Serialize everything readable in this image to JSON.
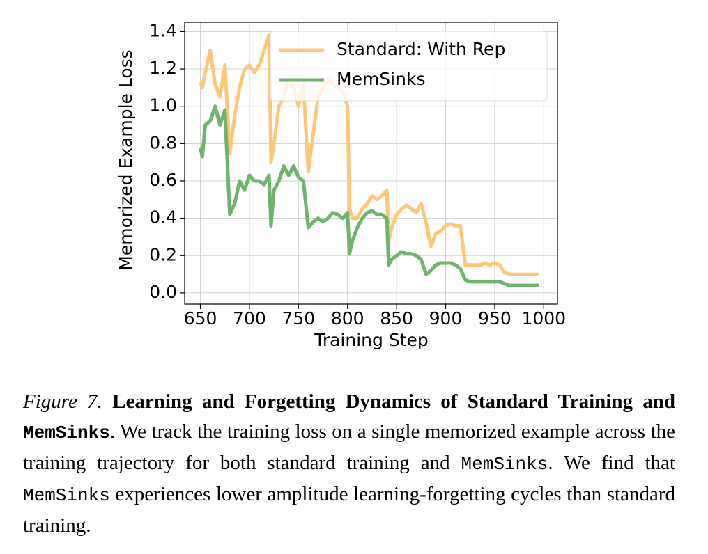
{
  "chart_data": {
    "type": "line",
    "x": [
      650,
      652,
      655,
      660,
      665,
      670,
      675,
      680,
      685,
      690,
      695,
      700,
      705,
      710,
      715,
      720,
      722,
      725,
      730,
      735,
      740,
      745,
      750,
      755,
      760,
      765,
      770,
      775,
      780,
      785,
      790,
      795,
      800,
      802,
      805,
      810,
      815,
      820,
      825,
      830,
      835,
      840,
      842,
      845,
      850,
      855,
      860,
      865,
      870,
      875,
      880,
      885,
      890,
      895,
      900,
      905,
      910,
      915,
      920,
      925,
      930,
      935,
      940,
      945,
      950,
      955,
      960,
      965,
      970,
      975,
      980,
      985,
      990,
      995
    ],
    "series": [
      {
        "name": "Standard: With Rep",
        "color": "#fdc777",
        "values": [
          1.13,
          1.1,
          1.18,
          1.3,
          1.12,
          1.05,
          1.22,
          0.75,
          0.95,
          1.1,
          1.2,
          1.22,
          1.18,
          1.22,
          1.3,
          1.38,
          0.7,
          0.8,
          1.0,
          1.05,
          1.15,
          1.1,
          1.0,
          1.12,
          0.65,
          0.85,
          1.05,
          1.1,
          1.15,
          1.12,
          1.1,
          1.08,
          1.0,
          0.45,
          0.4,
          0.4,
          0.45,
          0.48,
          0.52,
          0.5,
          0.52,
          0.55,
          0.28,
          0.35,
          0.42,
          0.45,
          0.47,
          0.45,
          0.43,
          0.48,
          0.38,
          0.25,
          0.32,
          0.33,
          0.36,
          0.37,
          0.36,
          0.36,
          0.15,
          0.15,
          0.15,
          0.15,
          0.16,
          0.15,
          0.16,
          0.15,
          0.11,
          0.1,
          0.1,
          0.1,
          0.1,
          0.1,
          0.1,
          0.1
        ]
      },
      {
        "name": "MemSinks",
        "color": "#6db46d",
        "values": [
          0.78,
          0.73,
          0.9,
          0.92,
          1.0,
          0.9,
          0.98,
          0.42,
          0.48,
          0.6,
          0.55,
          0.63,
          0.6,
          0.6,
          0.58,
          0.63,
          0.36,
          0.55,
          0.6,
          0.68,
          0.63,
          0.68,
          0.62,
          0.6,
          0.35,
          0.38,
          0.4,
          0.38,
          0.4,
          0.43,
          0.42,
          0.4,
          0.43,
          0.21,
          0.28,
          0.35,
          0.4,
          0.43,
          0.44,
          0.42,
          0.42,
          0.4,
          0.15,
          0.18,
          0.2,
          0.22,
          0.21,
          0.21,
          0.2,
          0.18,
          0.1,
          0.12,
          0.15,
          0.16,
          0.16,
          0.16,
          0.15,
          0.13,
          0.07,
          0.06,
          0.06,
          0.06,
          0.06,
          0.06,
          0.06,
          0.06,
          0.05,
          0.04,
          0.04,
          0.04,
          0.04,
          0.04,
          0.04,
          0.04
        ]
      }
    ],
    "xlabel": "Training Step",
    "ylabel": "Memorized Example Loss",
    "xlim": [
      634,
      1014
    ],
    "ylim": [
      -0.06,
      1.45
    ],
    "xticks": [
      650,
      700,
      750,
      800,
      850,
      900,
      950,
      1000
    ],
    "yticks": [
      {
        "value": 0,
        "label": "0.0"
      },
      0.2,
      0.4,
      0.6,
      0.8,
      {
        "value": 1,
        "label": "1.0"
      },
      1.2,
      1.4
    ],
    "grid": true,
    "legend": "upper right"
  },
  "caption": {
    "segments": [
      {
        "text": "Figure 7.",
        "style": "italic"
      },
      {
        "text": " Learning and Forgetting Dynamics of Standard Training and ",
        "style": "bold"
      },
      {
        "text": "MemSinks",
        "style": "bold-mono"
      },
      {
        "text": ". We track the training loss on a single memorized example across the training trajectory for both standard training and ",
        "style": "plain"
      },
      {
        "text": "MemSinks",
        "style": "mono"
      },
      {
        "text": ".  We find that ",
        "style": "plain"
      },
      {
        "text": "MemSinks",
        "style": "mono"
      },
      {
        "text": " experiences lower amplitude learning-forgetting cycles than standard training.",
        "style": "plain"
      }
    ]
  }
}
